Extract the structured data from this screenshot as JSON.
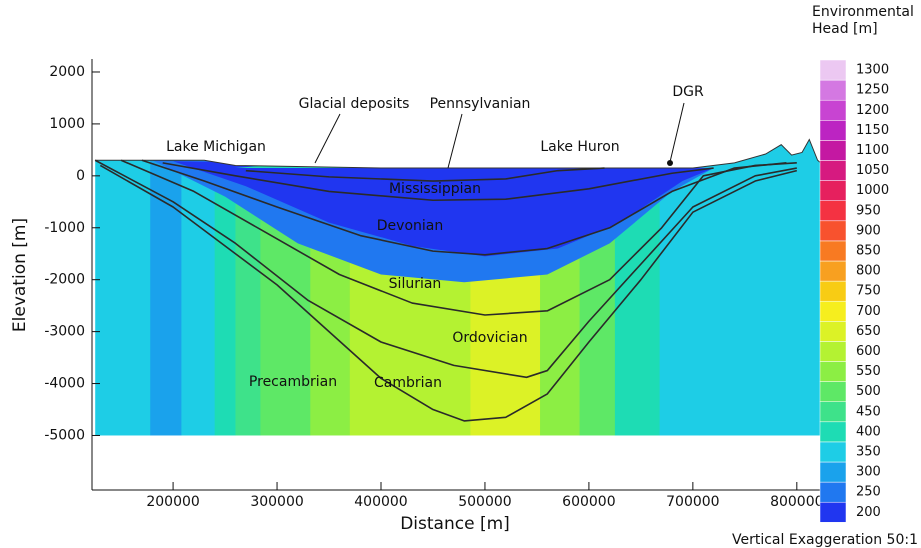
{
  "chart_data": {
    "type": "cross-section",
    "xlabel": "Distance [m]",
    "ylabel": "Elevation [m]",
    "xlim": [
      122000,
      830000
    ],
    "ylim": [
      -6050,
      2250
    ],
    "xticks": [
      200000,
      300000,
      400000,
      500000,
      600000,
      700000,
      800000
    ],
    "yticks": [
      2000,
      1000,
      0,
      -1000,
      -2000,
      -3000,
      -4000,
      -5000
    ],
    "base": -5000,
    "colorbar_title": [
      "Environmental",
      "Head [m]"
    ],
    "colorbar": {
      "levels": [
        200,
        250,
        300,
        350,
        400,
        450,
        500,
        550,
        600,
        650,
        700,
        750,
        800,
        850,
        900,
        950,
        1000,
        1050,
        1100,
        1150,
        1200,
        1250,
        1300
      ],
      "colors": [
        "#2036f0",
        "#2078f0",
        "#1aa2ec",
        "#1ecde6",
        "#1edcb4",
        "#3ee28a",
        "#5ee866",
        "#8cee44",
        "#b4f232",
        "#dcf226",
        "#f6ee1e",
        "#f8cc14",
        "#f8a020",
        "#f87a22",
        "#f8522e",
        "#f43242",
        "#e6205e",
        "#d61a80",
        "#c418a2",
        "#bc24c2",
        "#c844d2",
        "#d478e2",
        "#ecc8f2"
      ]
    },
    "surface": {
      "x": [
        125000,
        230000,
        260000,
        400000,
        600000,
        700000,
        740000,
        770000,
        785000,
        795000,
        805000,
        812000,
        820000,
        826000
      ],
      "y": [
        300,
        300,
        200,
        150,
        150,
        150,
        250,
        420,
        600,
        400,
        450,
        700,
        300,
        200
      ]
    },
    "columns": [
      {
        "x": [
          125000,
          178000
        ],
        "head": 350
      },
      {
        "x": [
          178000,
          208000
        ],
        "head": 300
      },
      {
        "x": [
          208000,
          240000
        ],
        "head": 350
      },
      {
        "x": [
          240000,
          260000
        ],
        "head": 400
      },
      {
        "x": [
          260000,
          284000
        ],
        "head": 450
      },
      {
        "x": [
          284000,
          332000
        ],
        "head": 500
      },
      {
        "x": [
          332000,
          370000
        ],
        "head": 550
      },
      {
        "x": [
          370000,
          390000
        ],
        "head": 600
      },
      {
        "x": [
          390000,
          486000
        ],
        "head": 600
      },
      {
        "x": [
          486000,
          553000
        ],
        "head": 650
      },
      {
        "x": [
          553000,
          591000
        ],
        "head": 550
      },
      {
        "x": [
          591000,
          625000
        ],
        "head": 500
      },
      {
        "x": [
          625000,
          668000
        ],
        "head": 400
      },
      {
        "x": [
          668000,
          706000
        ],
        "head": 350
      },
      {
        "x": [
          706000,
          826000
        ],
        "head": 350
      }
    ],
    "zones": [
      {
        "head": 250,
        "x": [
          180000,
          250000,
          320000,
          400000,
          480000,
          560000,
          620000,
          680000,
          720000
        ],
        "y": [
          300,
          -400,
          -1300,
          -1900,
          -2050,
          -1900,
          -1300,
          -300,
          150
        ]
      },
      {
        "head": 200,
        "x": [
          200000,
          270000,
          350000,
          430000,
          500000,
          570000,
          630000,
          690000,
          720000
        ],
        "y": [
          280,
          -200,
          -900,
          -1350,
          -1550,
          -1400,
          -900,
          -100,
          150
        ]
      },
      {
        "head": 400,
        "x": [
          260000,
          350000,
          420000,
          470000,
          510000
        ],
        "y": [
          150,
          300,
          350,
          280,
          150
        ]
      }
    ],
    "boundaries": [
      {
        "x": [
          270000,
          350000,
          450000,
          520000,
          570000,
          615000
        ],
        "y": [
          100,
          -20,
          -100,
          -60,
          100,
          150
        ]
      },
      {
        "x": [
          190000,
          260000,
          350000,
          450000,
          520000,
          600000,
          680000,
          720000
        ],
        "y": [
          250,
          0,
          -300,
          -470,
          -450,
          -250,
          50,
          150
        ]
      },
      {
        "x": [
          170000,
          230000,
          300000,
          380000,
          450000,
          500000,
          560000,
          620000,
          680000,
          740000,
          790000
        ],
        "y": [
          300,
          -100,
          -600,
          -1150,
          -1450,
          -1520,
          -1400,
          -1000,
          -300,
          150,
          250
        ]
      },
      {
        "x": [
          150000,
          220000,
          290000,
          360000,
          430000,
          500000,
          560000,
          620000,
          670000,
          710000,
          760000,
          800000
        ],
        "y": [
          300,
          -300,
          -1100,
          -1900,
          -2450,
          -2680,
          -2600,
          -2000,
          -1000,
          0,
          200,
          250
        ]
      },
      {
        "x": [
          125000,
          200000,
          260000,
          330000,
          400000,
          470000,
          540000,
          560000,
          600000,
          650000,
          700000,
          760000,
          800000
        ],
        "y": [
          300,
          -500,
          -1300,
          -2400,
          -3200,
          -3650,
          -3880,
          -3750,
          -2800,
          -1700,
          -600,
          0,
          150
        ]
      },
      {
        "x": [
          130000,
          200000,
          260000,
          300000,
          350000,
          400000,
          450000,
          480000,
          520000,
          560000,
          600000,
          650000,
          700000,
          760000,
          800000
        ],
        "y": [
          200,
          -600,
          -1500,
          -2100,
          -3000,
          -3900,
          -4500,
          -4720,
          -4650,
          -4200,
          -3200,
          -2000,
          -700,
          -100,
          100
        ]
      }
    ],
    "annotations": [
      "Lake Michigan",
      "Glacial deposits",
      "Pennsylvanian",
      "Lake Huron",
      "DGR",
      "Mississippian",
      "Devonian",
      "Silurian",
      "Ordovician",
      "Precambrian",
      "Cambrian"
    ],
    "note": "Vertical Exaggeration 50:1"
  }
}
